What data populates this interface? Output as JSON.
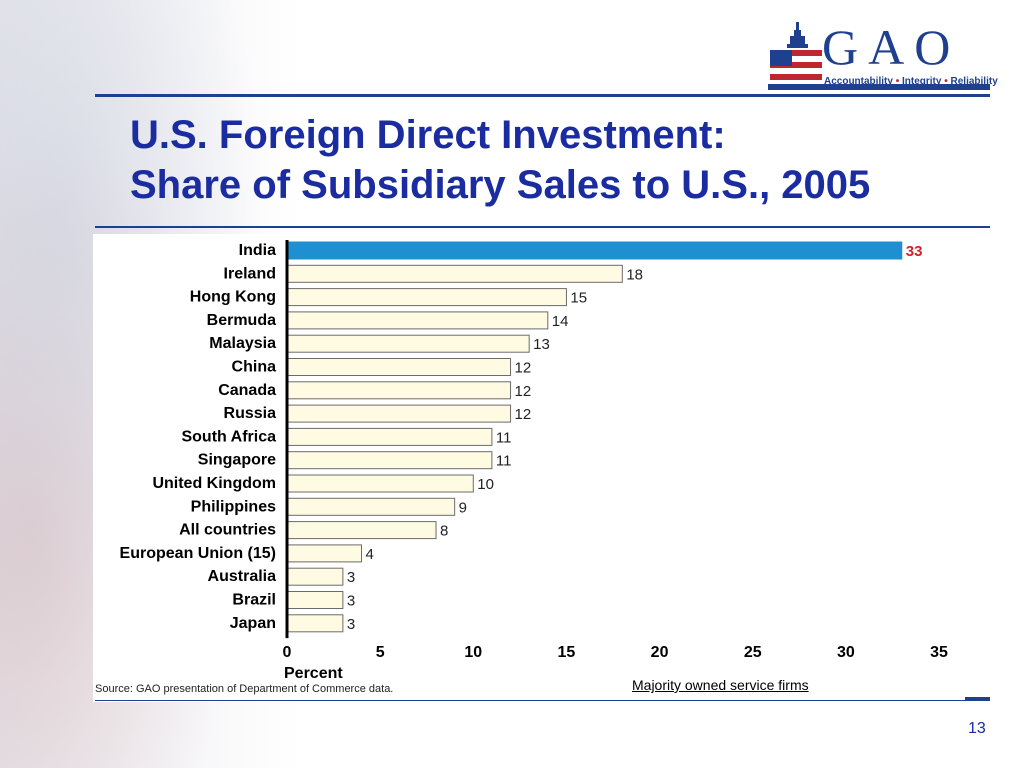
{
  "header": {
    "logo_text": "GAO",
    "logo_tagline_1": "Accountability",
    "logo_tagline_2": "Integrity",
    "logo_tagline_3": "Reliability",
    "logo_sep": "•"
  },
  "slide": {
    "title_line1": "U.S. Foreign Direct Investment:",
    "title_line2": "Share of Subsidiary Sales to U.S., 2005",
    "source": "Source: GAO presentation of Department of Commerce data.",
    "note": "Majority owned service firms",
    "page_number": "13"
  },
  "colors": {
    "title": "#1a2ca0",
    "highlight_bar": "#1e8fd0",
    "highlight_label": "#d32027",
    "bar_fill": "#fffbe3",
    "bar_stroke": "#6b6b6b"
  },
  "chart_data": {
    "type": "bar",
    "orientation": "horizontal",
    "categories": [
      "India",
      "Ireland",
      "Hong Kong",
      "Bermuda",
      "Malaysia",
      "China",
      "Canada",
      "Russia",
      "South Africa",
      "Singapore",
      "United Kingdom",
      "Philippines",
      "All countries",
      "European Union (15)",
      "Australia",
      "Brazil",
      "Japan"
    ],
    "values": [
      33,
      18,
      15,
      14,
      13,
      12,
      12,
      12,
      11,
      11,
      10,
      9,
      8,
      4,
      3,
      3,
      3
    ],
    "highlight_index": 0,
    "xlabel": "Percent",
    "xlim": [
      0,
      35
    ],
    "xticks": [
      0,
      5,
      10,
      15,
      20,
      25,
      30,
      35
    ],
    "grid": false
  }
}
